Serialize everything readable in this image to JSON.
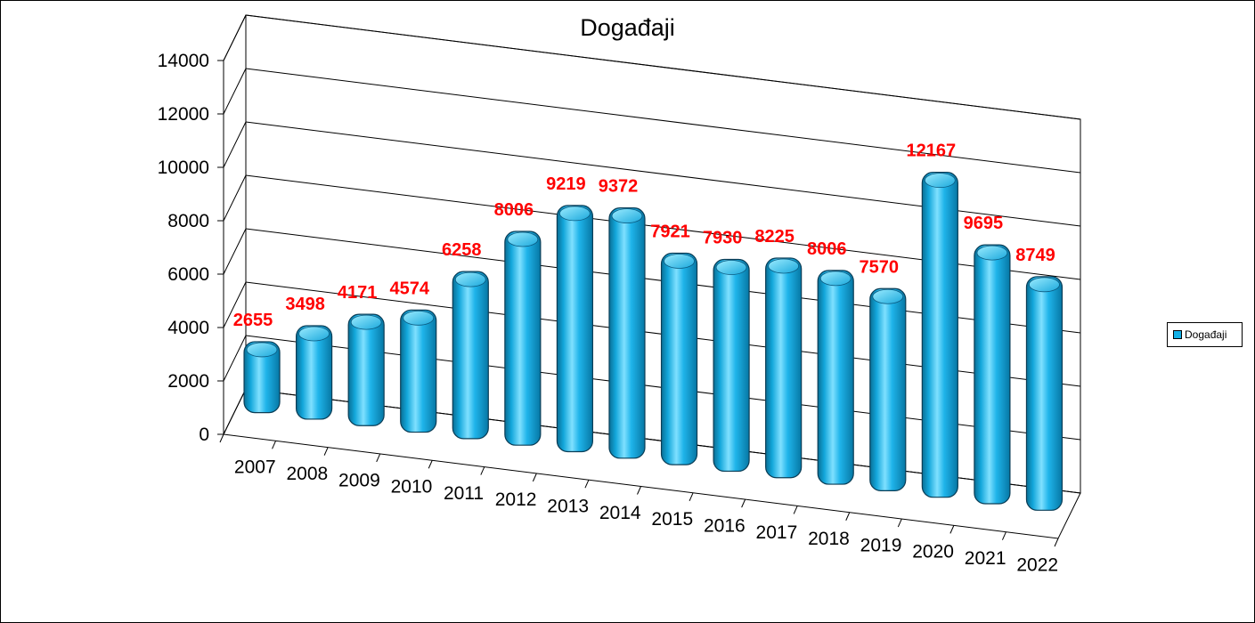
{
  "chart_data": {
    "type": "bar",
    "title": "Događaji",
    "categories": [
      "2007",
      "2008",
      "2009",
      "2010",
      "2011",
      "2012",
      "2013",
      "2014",
      "2015",
      "2016",
      "2017",
      "2018",
      "2019",
      "2020",
      "2021",
      "2022"
    ],
    "series": [
      {
        "name": "Događaji",
        "values": [
          2655,
          3498,
          4171,
          4574,
          6258,
          8006,
          9219,
          9372,
          7921,
          7930,
          8225,
          8006,
          7570,
          12167,
          9695,
          8749
        ]
      }
    ],
    "data_labels": [
      "2655",
      "3498",
      "4171",
      "4574",
      "6258",
      "8006",
      "9219",
      "9372",
      "7921",
      "7930",
      "8225",
      "8006",
      "7570",
      "12167",
      "9695",
      "8749"
    ],
    "yticks": [
      "0",
      "2000",
      "4000",
      "6000",
      "8000",
      "10000",
      "12000",
      "14000"
    ],
    "ylim": [
      0,
      14000
    ],
    "grid": true,
    "legend_position": "right",
    "bar_color": "#12b0e6",
    "label_color": "#ff0000",
    "style": "3d-cylinder"
  },
  "legend": {
    "label": "Događaji"
  }
}
